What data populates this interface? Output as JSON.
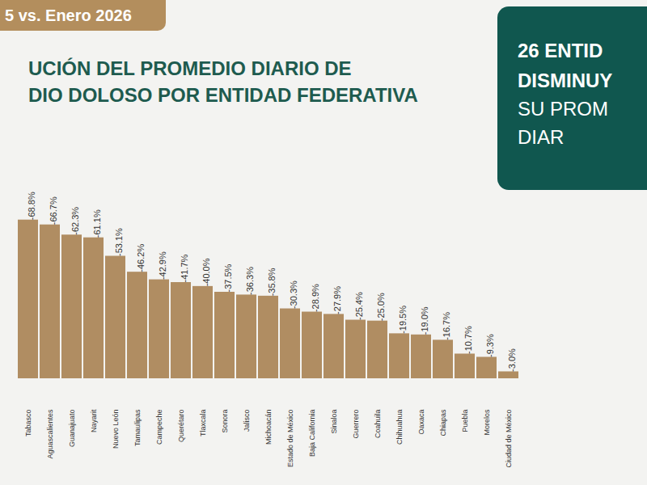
{
  "chart_data": {
    "type": "bar",
    "title": "UCIÓN DEL PROMEDIO DIARIO DE\nDIO DOLOSO POR ENTIDAD FEDERATIVA",
    "subtitle": "5 vs. Enero 2026",
    "annotations": [
      "26 ENTID",
      "DISMINUY",
      "SU PROM",
      "DIAR"
    ],
    "categories": [
      "Tabasco",
      "Aguascalientes",
      "Guanajuato",
      "Nayarit",
      "Nuevo León",
      "Tamaulipas",
      "Campeche",
      "Querétaro",
      "Tlaxcala",
      "Sonora",
      "Jalisco",
      "Michoacán",
      "Estado de México",
      "Baja California",
      "Sinaloa",
      "Guerrero",
      "Coahuila",
      "Chihuahua",
      "Oaxaca",
      "Chiapas",
      "Puebla",
      "Morelos",
      "Ciudad de México"
    ],
    "values": [
      -68.8,
      -66.7,
      -62.3,
      -61.1,
      -53.1,
      -46.2,
      -42.9,
      -41.7,
      -40.0,
      -37.5,
      -36.3,
      -35.8,
      -30.3,
      -28.9,
      -27.9,
      -25.4,
      -25.0,
      -19.5,
      -19.0,
      -16.7,
      -10.7,
      -9.3,
      -3.0
    ],
    "value_labels": [
      "-68.8%",
      "-66.7%",
      "-62.3%",
      "-61.1%",
      "-53.1%",
      "-46.2%",
      "-42.9%",
      "-41.7%",
      "-40.0%",
      "-37.5%",
      "-36.3%",
      "-35.8%",
      "-30.3%",
      "-28.9%",
      "-27.9%",
      "-25.4%",
      "-25.0%",
      "-19.5%",
      "-19.0%",
      "-16.7%",
      "-10.7%",
      "-9.3%",
      "-3.0%"
    ],
    "color": "#b08d62",
    "ylim": [
      0,
      -75
    ],
    "data_labels": true,
    "tick_labels": "x",
    "grid": false
  }
}
